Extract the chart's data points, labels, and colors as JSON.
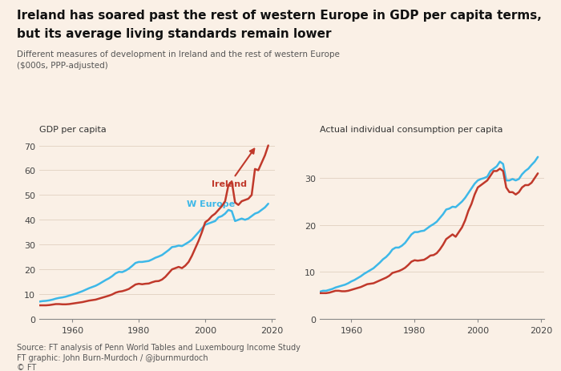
{
  "title_line1": "Ireland has soared past the rest of western Europe in GDP per capita terms,",
  "title_line2": "but its average living standards remain lower",
  "subtitle_line1": "Different measures of development in Ireland and the rest of western Europe",
  "subtitle_line2": "($000s, PPP-adjusted)",
  "left_ylabel": "GDP per capita",
  "right_ylabel": "Actual individual consumption per capita",
  "source_line1": "Source: FT analysis of Penn World Tables and Luxembourg Income Study",
  "source_line2": "FT graphic: John Burn-Murdoch / @jburnmurdoch",
  "source_line3": "© FT",
  "background_color": "#faf0e6",
  "ireland_color": "#c0392b",
  "weurope_color": "#3db8e8",
  "gdp_years": [
    1950,
    1951,
    1952,
    1953,
    1954,
    1955,
    1956,
    1957,
    1958,
    1959,
    1960,
    1961,
    1962,
    1963,
    1964,
    1965,
    1966,
    1967,
    1968,
    1969,
    1970,
    1971,
    1972,
    1973,
    1974,
    1975,
    1976,
    1977,
    1978,
    1979,
    1980,
    1981,
    1982,
    1983,
    1984,
    1985,
    1986,
    1987,
    1988,
    1989,
    1990,
    1991,
    1992,
    1993,
    1994,
    1995,
    1996,
    1997,
    1998,
    1999,
    2000,
    2001,
    2002,
    2003,
    2004,
    2005,
    2006,
    2007,
    2008,
    2009,
    2010,
    2011,
    2012,
    2013,
    2014,
    2015,
    2016,
    2017,
    2018,
    2019
  ],
  "gdp_ireland": [
    5.5,
    5.5,
    5.5,
    5.6,
    5.8,
    6.0,
    6.0,
    5.9,
    5.9,
    6.0,
    6.2,
    6.4,
    6.6,
    6.8,
    7.1,
    7.4,
    7.6,
    7.8,
    8.2,
    8.6,
    9.0,
    9.4,
    9.9,
    10.6,
    11.0,
    11.2,
    11.6,
    12.1,
    13.0,
    13.9,
    14.2,
    14.0,
    14.2,
    14.3,
    14.8,
    15.2,
    15.3,
    15.9,
    17.0,
    18.5,
    20.0,
    20.5,
    21.0,
    20.5,
    21.5,
    23.0,
    25.5,
    28.5,
    31.5,
    35.0,
    39.0,
    40.0,
    41.5,
    42.5,
    44.0,
    45.5,
    47.5,
    54.0,
    55.5,
    47.0,
    46.0,
    47.5,
    48.0,
    48.5,
    50.0,
    60.5,
    60.0,
    63.0,
    66.0,
    70.0
  ],
  "gdp_weurope": [
    7.0,
    7.2,
    7.3,
    7.5,
    7.8,
    8.2,
    8.5,
    8.7,
    9.0,
    9.4,
    9.8,
    10.2,
    10.7,
    11.2,
    11.8,
    12.4,
    12.9,
    13.4,
    14.1,
    14.9,
    15.7,
    16.4,
    17.3,
    18.4,
    19.0,
    18.9,
    19.5,
    20.3,
    21.4,
    22.6,
    23.0,
    23.0,
    23.2,
    23.4,
    24.0,
    24.7,
    25.2,
    25.8,
    26.8,
    27.8,
    29.0,
    29.2,
    29.6,
    29.4,
    30.2,
    31.0,
    32.0,
    33.5,
    35.0,
    36.5,
    38.0,
    38.5,
    39.0,
    39.5,
    41.0,
    41.5,
    42.5,
    44.0,
    43.5,
    39.5,
    40.0,
    40.5,
    40.0,
    40.5,
    41.5,
    42.5,
    43.0,
    44.0,
    45.0,
    46.5
  ],
  "aic_years": [
    1950,
    1951,
    1952,
    1953,
    1954,
    1955,
    1956,
    1957,
    1958,
    1959,
    1960,
    1961,
    1962,
    1963,
    1964,
    1965,
    1966,
    1967,
    1968,
    1969,
    1970,
    1971,
    1972,
    1973,
    1974,
    1975,
    1976,
    1977,
    1978,
    1979,
    1980,
    1981,
    1982,
    1983,
    1984,
    1985,
    1986,
    1987,
    1988,
    1989,
    1990,
    1991,
    1992,
    1993,
    1994,
    1995,
    1996,
    1997,
    1998,
    1999,
    2000,
    2001,
    2002,
    2003,
    2004,
    2005,
    2006,
    2007,
    2008,
    2009,
    2010,
    2011,
    2012,
    2013,
    2014,
    2015,
    2016,
    2017,
    2018,
    2019
  ],
  "aic_ireland": [
    5.5,
    5.5,
    5.5,
    5.6,
    5.8,
    6.0,
    6.0,
    5.9,
    5.9,
    6.0,
    6.2,
    6.4,
    6.6,
    6.8,
    7.1,
    7.4,
    7.5,
    7.6,
    7.9,
    8.2,
    8.5,
    8.8,
    9.2,
    9.8,
    10.0,
    10.2,
    10.5,
    10.9,
    11.5,
    12.2,
    12.5,
    12.4,
    12.5,
    12.6,
    13.0,
    13.5,
    13.6,
    14.0,
    14.8,
    15.8,
    17.0,
    17.5,
    18.0,
    17.5,
    18.5,
    19.5,
    21.0,
    23.0,
    24.5,
    26.5,
    28.0,
    28.5,
    29.0,
    29.5,
    30.5,
    31.5,
    31.5,
    32.0,
    31.5,
    28.0,
    27.0,
    27.0,
    26.5,
    27.0,
    28.0,
    28.5,
    28.5,
    29.0,
    30.0,
    31.0
  ],
  "aic_weurope": [
    5.8,
    6.0,
    6.0,
    6.2,
    6.4,
    6.7,
    6.9,
    7.1,
    7.3,
    7.6,
    8.0,
    8.3,
    8.7,
    9.1,
    9.6,
    10.0,
    10.4,
    10.8,
    11.4,
    12.0,
    12.7,
    13.2,
    13.9,
    14.8,
    15.2,
    15.2,
    15.6,
    16.2,
    17.1,
    18.0,
    18.5,
    18.5,
    18.7,
    18.8,
    19.3,
    19.8,
    20.2,
    20.7,
    21.5,
    22.3,
    23.3,
    23.5,
    23.9,
    23.8,
    24.4,
    25.0,
    25.8,
    26.8,
    27.8,
    28.8,
    29.5,
    29.8,
    30.0,
    30.3,
    31.5,
    32.0,
    32.5,
    33.5,
    33.0,
    29.5,
    29.5,
    29.8,
    29.5,
    29.8,
    30.8,
    31.5,
    32.0,
    32.8,
    33.5,
    34.5
  ],
  "ylim_left": [
    0,
    72
  ],
  "ylim_right": [
    0,
    38
  ],
  "yticks_left": [
    0,
    10,
    20,
    30,
    40,
    50,
    60,
    70
  ],
  "yticks_right": [
    0,
    10,
    20,
    30
  ],
  "xlim": [
    1950,
    2021
  ],
  "xticks": [
    1960,
    1980,
    2000,
    2020
  ],
  "grid_color": "#e0d0c0",
  "tick_color": "#888888",
  "label_color_left": "Ireland",
  "label_color_weurope": "W Europe"
}
